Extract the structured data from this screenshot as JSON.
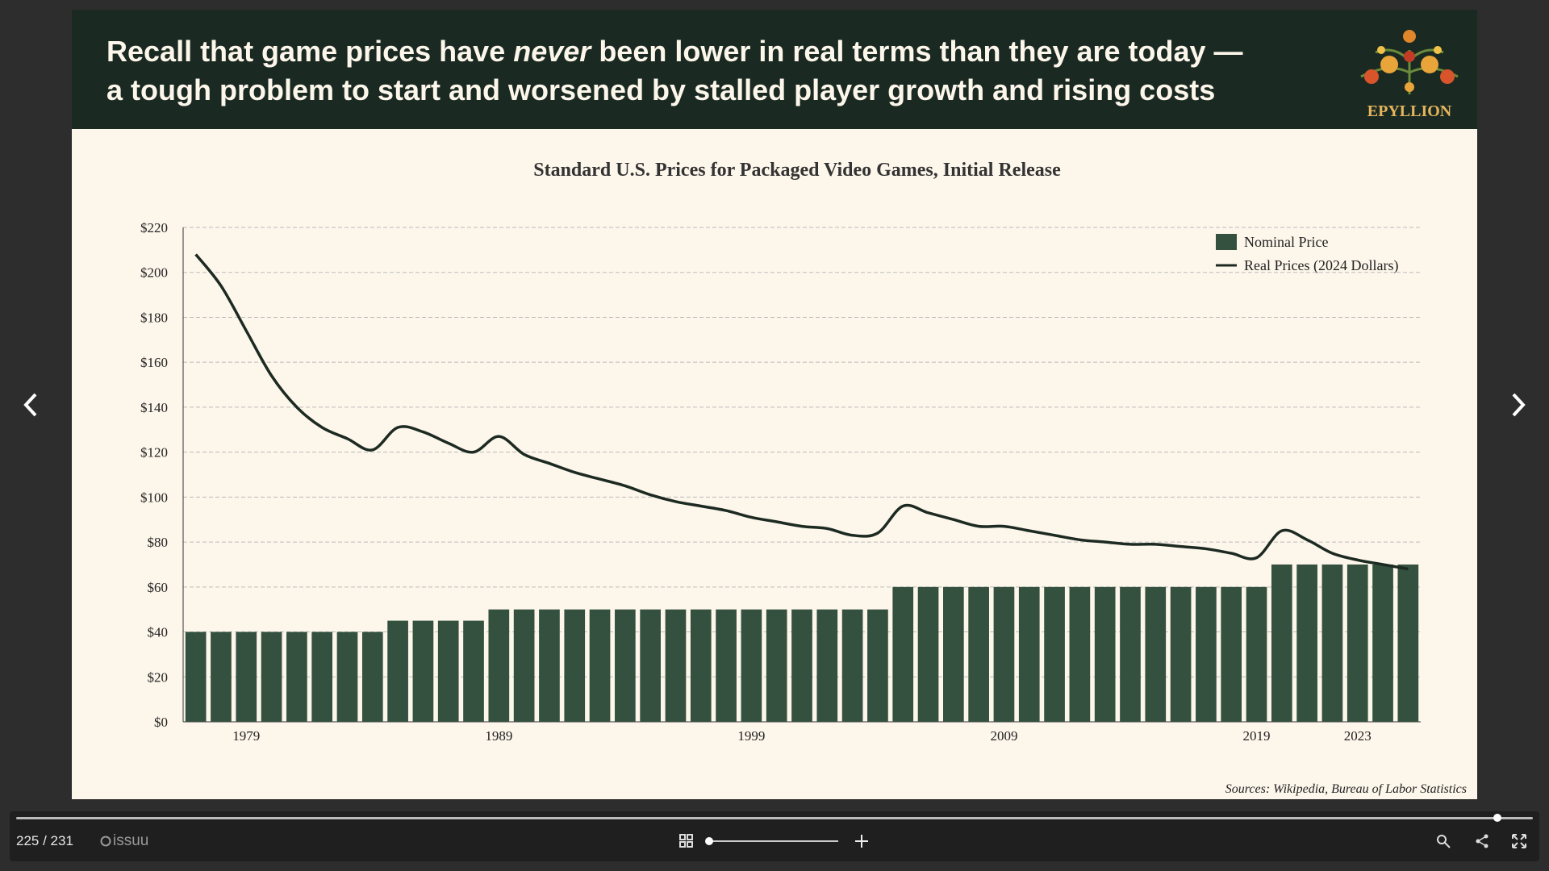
{
  "headline": {
    "line1_start": "Recall that game prices have ",
    "line1_emphasis": "never",
    "line1_end": " been lower in real terms than they are today —",
    "line2": "a tough problem to start and worsened by stalled player growth and rising costs"
  },
  "logo": {
    "text": "EPYLLION"
  },
  "sources": "Sources: Wikipedia, Bureau of Labor Statistics",
  "viewer": {
    "page_indicator": "225 / 231",
    "brand": "issuu"
  },
  "chart_data": {
    "type": "bar",
    "title": "Standard U.S. Prices for Packaged Video Games, Initial Release",
    "categories": [
      null,
      null,
      "1979",
      null,
      null,
      null,
      null,
      null,
      null,
      null,
      null,
      null,
      "1989",
      null,
      null,
      null,
      null,
      null,
      null,
      null,
      null,
      null,
      "1999",
      null,
      null,
      null,
      null,
      null,
      null,
      null,
      null,
      null,
      "2009",
      null,
      null,
      null,
      null,
      null,
      null,
      null,
      null,
      null,
      "2019",
      null,
      null,
      null,
      "2023",
      null,
      null
    ],
    "series": [
      {
        "name": "Nominal Price",
        "type": "bar",
        "color": "#34503f",
        "values": [
          40,
          40,
          40,
          40,
          40,
          40,
          40,
          40,
          45,
          45,
          45,
          45,
          50,
          50,
          50,
          50,
          50,
          50,
          50,
          50,
          50,
          50,
          50,
          50,
          50,
          50,
          50,
          50,
          60,
          60,
          60,
          60,
          60,
          60,
          60,
          60,
          60,
          60,
          60,
          60,
          60,
          60,
          60,
          70,
          70,
          70,
          70,
          70,
          70
        ]
      },
      {
        "name": "Real Prices (2024 Dollars)",
        "type": "line",
        "color": "#1c2a22",
        "values": [
          208,
          194,
          174,
          154,
          140,
          131,
          126,
          121,
          131,
          129,
          124,
          120,
          127,
          119,
          115,
          111,
          108,
          105,
          101,
          98,
          96,
          94,
          91,
          89,
          87,
          86,
          83,
          84,
          96,
          93,
          90,
          87,
          87,
          85,
          83,
          81,
          80,
          79,
          79,
          78,
          77,
          75,
          73,
          85,
          81,
          75,
          72,
          70,
          68
        ]
      }
    ],
    "ylim": [
      0,
      220
    ],
    "yticks": [
      {
        "value": 0,
        "label": "$0"
      },
      {
        "value": 20,
        "label": "$20"
      },
      {
        "value": 40,
        "label": "$40"
      },
      {
        "value": 60,
        "label": "$60"
      },
      {
        "value": 80,
        "label": "$80"
      },
      {
        "value": 100,
        "label": "$100"
      },
      {
        "value": 120,
        "label": "$120"
      },
      {
        "value": 140,
        "label": "$140"
      },
      {
        "value": 160,
        "label": "$160"
      },
      {
        "value": 180,
        "label": "$180"
      },
      {
        "value": 200,
        "label": "$200"
      },
      {
        "value": 220,
        "label": "$220"
      }
    ],
    "grid": true,
    "legend": "upper right"
  }
}
